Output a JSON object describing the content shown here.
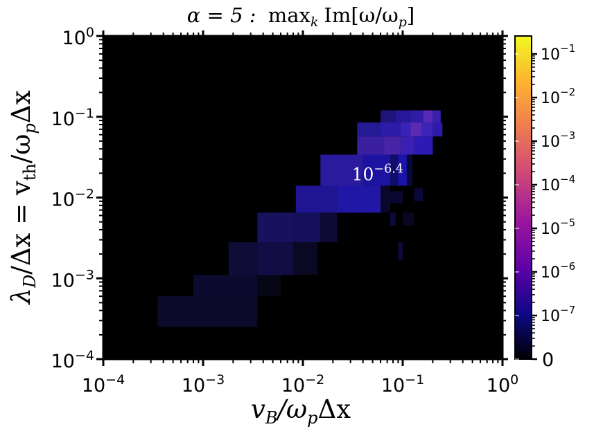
{
  "chart_data": {
    "type": "heatmap",
    "title": "α = 5 :  max_k Im[ω/ω_p]",
    "title_parts": {
      "lhs": "α = 5 :",
      "op": "max",
      "sub": "k",
      "rhs": "Im[ω/ω",
      "rsub": "p",
      "close": "]"
    },
    "xlabel": "v_B / ω_p Δx",
    "xlabel_parts": {
      "a": "v",
      "a_sub": "B",
      "b": "/ω",
      "b_sub": "p",
      "c": "Δx"
    },
    "ylabel": "λ_D / Δx = v_th / ω_p Δx",
    "ylabel_parts": {
      "a": "λ",
      "a_sub": "D",
      "b": "/Δx = v",
      "b_sub": "th",
      "c": "/ω",
      "c_sub": "p",
      "d": "Δx"
    },
    "x_scale": "log",
    "y_scale": "log",
    "xlim": [
      0.0001,
      1
    ],
    "ylim": [
      0.0001,
      1
    ],
    "x_ticks": [
      {
        "value": 0.0001,
        "base": "10",
        "exp": "−4"
      },
      {
        "value": 0.001,
        "base": "10",
        "exp": "−3"
      },
      {
        "value": 0.01,
        "base": "10",
        "exp": "−2"
      },
      {
        "value": 0.1,
        "base": "10",
        "exp": "−1"
      },
      {
        "value": 1,
        "base": "10",
        "exp": "0"
      }
    ],
    "y_ticks": [
      {
        "value": 0.0001,
        "base": "10",
        "exp": "−4"
      },
      {
        "value": 0.001,
        "base": "10",
        "exp": "−3"
      },
      {
        "value": 0.01,
        "base": "10",
        "exp": "−2"
      },
      {
        "value": 0.1,
        "base": "10",
        "exp": "−1"
      },
      {
        "value": 1,
        "base": "10",
        "exp": "0"
      }
    ],
    "background_color": "#000000",
    "annotation": {
      "base": "10",
      "exp": "−6.4",
      "x": 0.055,
      "y": 0.02
    },
    "colorbar": {
      "scale": "symlog",
      "colormap": "plasma",
      "colors": [
        "#000000",
        "#0d0887",
        "#5c01a6",
        "#9c179e",
        "#cc4778",
        "#ed7953",
        "#fdb42f",
        "#f0f921"
      ],
      "ticks": [
        {
          "label": "0"
        },
        {
          "base": "10",
          "exp": "−7"
        },
        {
          "base": "10",
          "exp": "−6"
        },
        {
          "base": "10",
          "exp": "−5"
        },
        {
          "base": "10",
          "exp": "−4"
        },
        {
          "base": "10",
          "exp": "−3"
        },
        {
          "base": "10",
          "exp": "−2"
        },
        {
          "base": "10",
          "exp": "−1"
        }
      ]
    },
    "cells": [
      {
        "x": [
          0.00035,
          0.0035
        ],
        "y": [
          0.00025,
          0.0006
        ],
        "color": "#0b0a2a"
      },
      {
        "x": [
          0.0008,
          0.0035
        ],
        "y": [
          0.0006,
          0.0011
        ],
        "color": "#0c0a2e"
      },
      {
        "x": [
          0.0035,
          0.006
        ],
        "y": [
          0.0006,
          0.0011
        ],
        "color": "#070615"
      },
      {
        "x": [
          0.0018,
          0.0035
        ],
        "y": [
          0.0011,
          0.0028
        ],
        "color": "#0f0c38"
      },
      {
        "x": [
          0.0035,
          0.008
        ],
        "y": [
          0.0011,
          0.0028
        ],
        "color": "#120e45"
      },
      {
        "x": [
          0.008,
          0.014
        ],
        "y": [
          0.0011,
          0.0028
        ],
        "color": "#0a0822"
      },
      {
        "x": [
          0.0035,
          0.008
        ],
        "y": [
          0.0028,
          0.0065
        ],
        "color": "#18125e"
      },
      {
        "x": [
          0.008,
          0.015
        ],
        "y": [
          0.0028,
          0.0065
        ],
        "color": "#15105a"
      },
      {
        "x": [
          0.015,
          0.022
        ],
        "y": [
          0.0028,
          0.0065
        ],
        "color": "#0d0a35"
      },
      {
        "x": [
          0.0085,
          0.022
        ],
        "y": [
          0.0065,
          0.014
        ],
        "color": "#1f1593"
      },
      {
        "x": [
          0.022,
          0.06
        ],
        "y": [
          0.0065,
          0.014
        ],
        "color": "#2117a6"
      },
      {
        "x": [
          0.06,
          0.075
        ],
        "y": [
          0.0065,
          0.014
        ],
        "color": "#0a072a"
      },
      {
        "x": [
          0.015,
          0.04
        ],
        "y": [
          0.014,
          0.034
        ],
        "color": "#2a1a9e"
      },
      {
        "x": [
          0.04,
          0.075
        ],
        "y": [
          0.014,
          0.034
        ],
        "color": "#1c13a0"
      },
      {
        "x": [
          0.075,
          0.09
        ],
        "y": [
          0.014,
          0.034
        ],
        "color": "#120d6a"
      },
      {
        "x": [
          0.09,
          0.11
        ],
        "y": [
          0.014,
          0.034
        ],
        "color": "#1a14a8"
      },
      {
        "x": [
          0.11,
          0.125
        ],
        "y": [
          0.014,
          0.034
        ],
        "color": "#0a0838"
      },
      {
        "x": [
          0.035,
          0.065
        ],
        "y": [
          0.034,
          0.057
        ],
        "color": "#3a1fa0"
      },
      {
        "x": [
          0.065,
          0.095
        ],
        "y": [
          0.034,
          0.057
        ],
        "color": "#4824a6"
      },
      {
        "x": [
          0.095,
          0.13
        ],
        "y": [
          0.034,
          0.057
        ],
        "color": "#3a20b2"
      },
      {
        "x": [
          0.13,
          0.2
        ],
        "y": [
          0.034,
          0.057
        ],
        "color": "#2b1ab4"
      },
      {
        "x": [
          0.035,
          0.06
        ],
        "y": [
          0.057,
          0.085
        ],
        "color": "#241a96"
      },
      {
        "x": [
          0.06,
          0.095
        ],
        "y": [
          0.057,
          0.085
        ],
        "color": "#2c1ca8"
      },
      {
        "x": [
          0.095,
          0.12
        ],
        "y": [
          0.057,
          0.085
        ],
        "color": "#3a22b8"
      },
      {
        "x": [
          0.12,
          0.155
        ],
        "y": [
          0.057,
          0.085
        ],
        "color": "#5a2ab2"
      },
      {
        "x": [
          0.155,
          0.2
        ],
        "y": [
          0.057,
          0.085
        ],
        "color": "#3d22b6"
      },
      {
        "x": [
          0.2,
          0.25
        ],
        "y": [
          0.057,
          0.085
        ],
        "color": "#2e1aa8"
      },
      {
        "x": [
          0.06,
          0.085
        ],
        "y": [
          0.085,
          0.12
        ],
        "color": "#1d147c"
      },
      {
        "x": [
          0.085,
          0.12
        ],
        "y": [
          0.085,
          0.12
        ],
        "color": "#26189a"
      },
      {
        "x": [
          0.12,
          0.16
        ],
        "y": [
          0.085,
          0.12
        ],
        "color": "#2e1ca6"
      },
      {
        "x": [
          0.16,
          0.2
        ],
        "y": [
          0.085,
          0.12
        ],
        "color": "#5829b4"
      },
      {
        "x": [
          0.2,
          0.24
        ],
        "y": [
          0.085,
          0.12
        ],
        "color": "#3a20b0"
      },
      {
        "x": [
          0.07,
          0.1
        ],
        "y": [
          0.0085,
          0.012
        ],
        "color": "#0a0730"
      },
      {
        "x": [
          0.075,
          0.085
        ],
        "y": [
          0.0045,
          0.0065
        ],
        "color": "#0c0a3c"
      },
      {
        "x": [
          0.13,
          0.16
        ],
        "y": [
          0.009,
          0.013
        ],
        "color": "#0a0836"
      },
      {
        "x": [
          0.09,
          0.1
        ],
        "y": [
          0.0017,
          0.0028
        ],
        "color": "#0d0a3a"
      },
      {
        "x": [
          0.1,
          0.13
        ],
        "y": [
          0.0045,
          0.0065
        ],
        "color": "#080620"
      }
    ]
  }
}
